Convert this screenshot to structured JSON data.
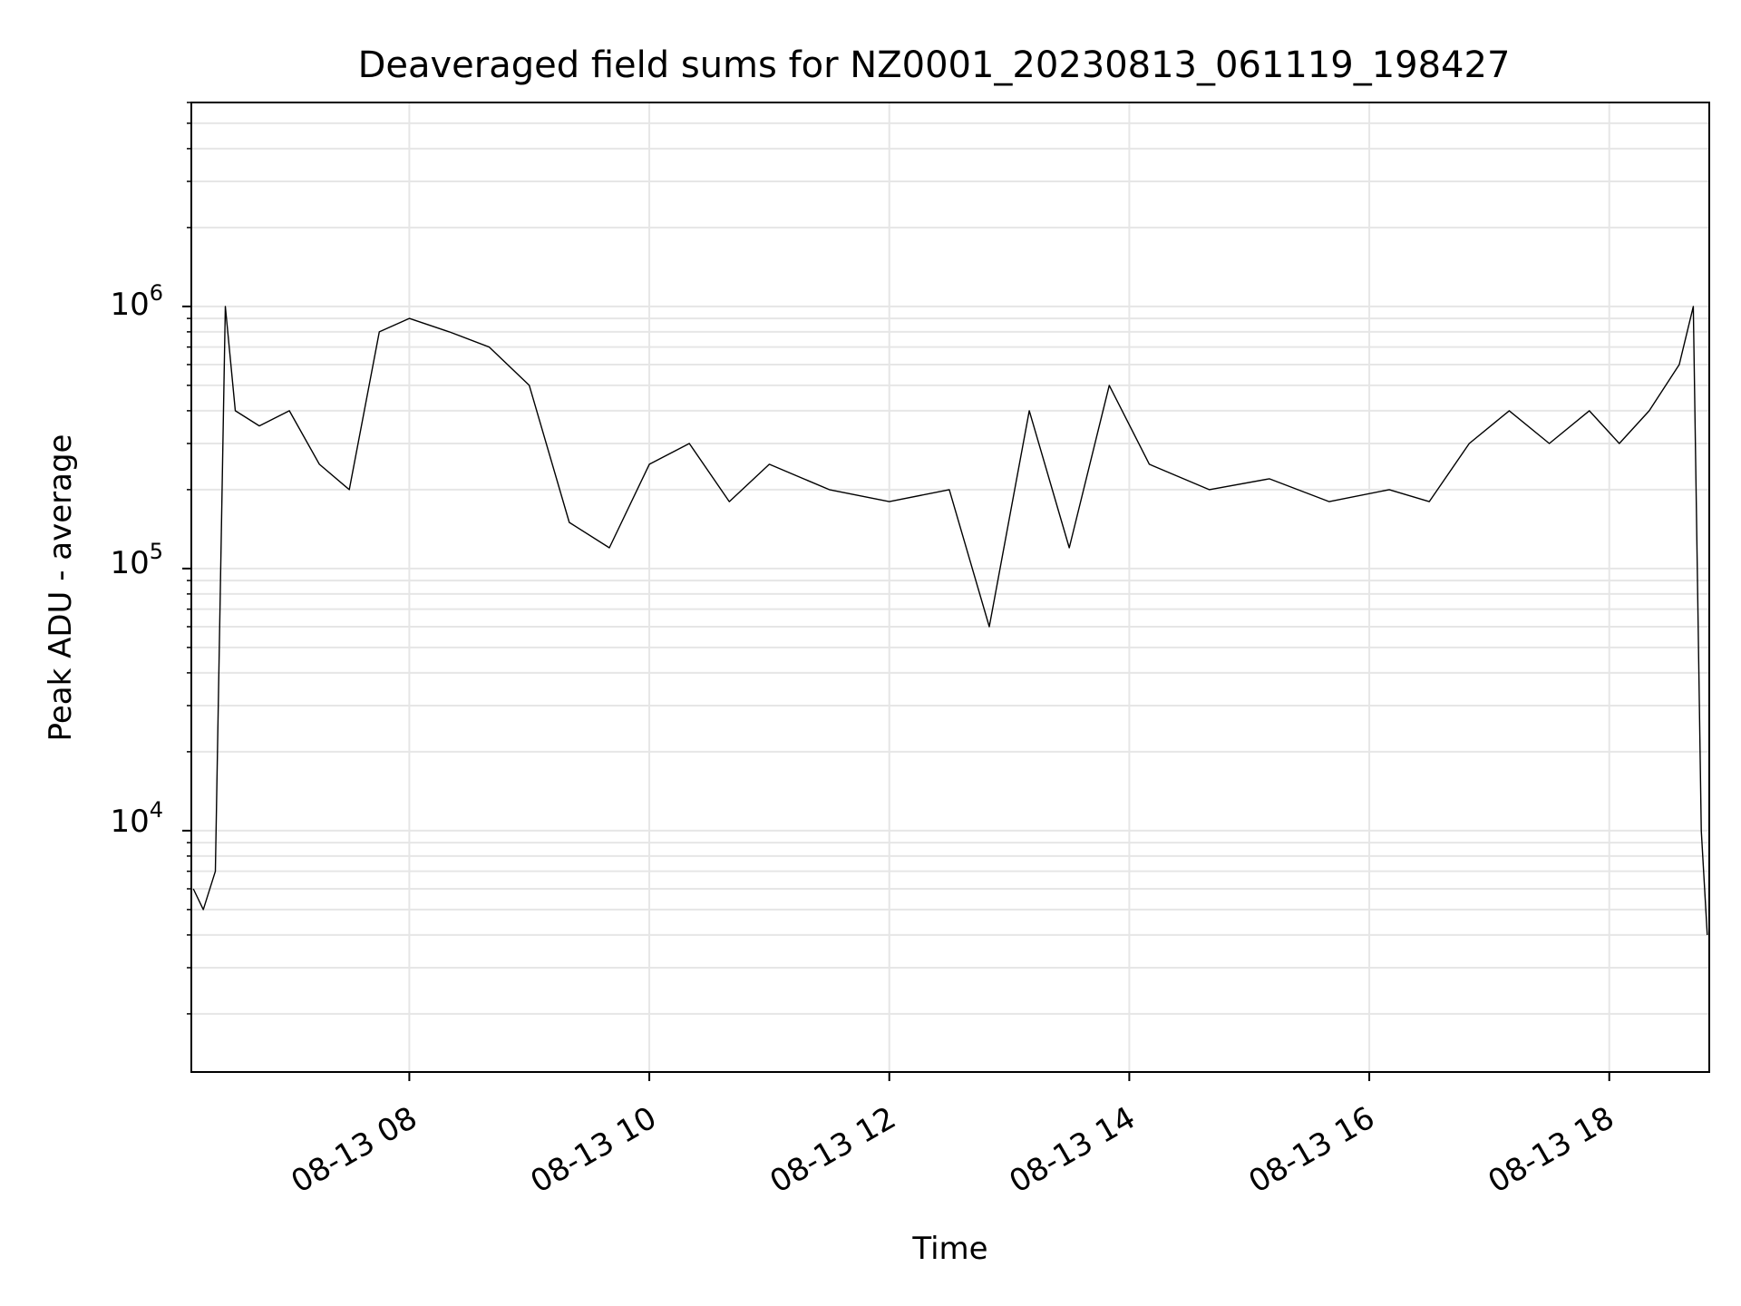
{
  "chart_data": {
    "type": "line",
    "title": "Deaveraged field sums for NZ0001_20230813_061119_198427",
    "xlabel": "Time",
    "ylabel": "Peak ADU - average",
    "y_scale": "log",
    "xlim": [
      "08-13 06:11",
      "08-13 18:50"
    ],
    "ylim": [
      1200,
      6000000
    ],
    "grid": true,
    "x_ticks": [
      "08-13 08",
      "08-13 10",
      "08-13 12",
      "08-13 14",
      "08-13 16",
      "08-13 18"
    ],
    "y_ticks": [
      {
        "base": "10",
        "exp": "4",
        "value": 10000
      },
      {
        "base": "10",
        "exp": "5",
        "value": 100000
      },
      {
        "base": "10",
        "exp": "6",
        "value": 1000000
      }
    ],
    "line_color": "#000000",
    "series": [
      {
        "x": [
          "08-13 06:12",
          "08-13 06:17",
          "08-13 06:23",
          "08-13 06:28",
          "08-13 06:33",
          "08-13 06:45",
          "08-13 07:00",
          "08-13 07:15",
          "08-13 07:30",
          "08-13 07:45",
          "08-13 08:00",
          "08-13 08:20",
          "08-13 08:40",
          "08-13 09:00",
          "08-13 09:20",
          "08-13 09:40",
          "08-13 10:00",
          "08-13 10:20",
          "08-13 10:40",
          "08-13 11:00",
          "08-13 11:30",
          "08-13 12:00",
          "08-13 12:30",
          "08-13 12:50",
          "08-13 13:10",
          "08-13 13:30",
          "08-13 13:50",
          "08-13 14:10",
          "08-13 14:40",
          "08-13 15:10",
          "08-13 15:40",
          "08-13 16:10",
          "08-13 16:30",
          "08-13 16:50",
          "08-13 17:10",
          "08-13 17:30",
          "08-13 17:50",
          "08-13 18:05",
          "08-13 18:20",
          "08-13 18:35",
          "08-13 18:42",
          "08-13 18:46",
          "08-13 18:49"
        ],
        "y": [
          6000,
          5000,
          7000,
          1000000,
          400000,
          350000,
          400000,
          250000,
          200000,
          800000,
          900000,
          800000,
          700000,
          500000,
          150000,
          120000,
          250000,
          300000,
          180000,
          250000,
          200000,
          180000,
          200000,
          60000,
          400000,
          120000,
          500000,
          250000,
          200000,
          220000,
          180000,
          200000,
          180000,
          300000,
          400000,
          300000,
          400000,
          300000,
          400000,
          600000,
          1000000,
          10000,
          4000
        ]
      }
    ]
  }
}
